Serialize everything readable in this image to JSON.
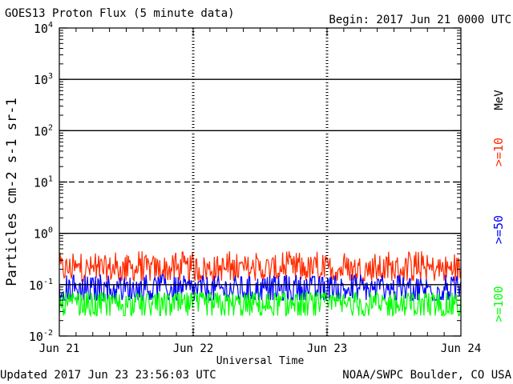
{
  "header": {
    "title": "GOES13 Proton Flux (5 minute data)",
    "begin": "Begin: 2017 Jun 21 0000 UTC"
  },
  "footer": {
    "updated": "Updated 2017 Jun 23 23:56:03 UTC",
    "credit": "NOAA/SWPC Boulder, CO USA"
  },
  "colors": {
    "ge10": "#ff2a00",
    "ge50": "#0000ff",
    "ge100": "#00ff00",
    "axis": "#000000"
  },
  "chart_data": {
    "type": "line",
    "title": "GOES13 Proton Flux (5 minute data)",
    "xlabel": "Universal Time",
    "ylabel": "Particles cm-2 s-1 sr-1",
    "yscale": "log",
    "ylim": [
      0.01,
      10000
    ],
    "xlim": [
      0,
      3
    ],
    "x_unit": "days since 2017 Jun 21 0000 UTC",
    "x_tick_labels": [
      "Jun 21",
      "Jun 22",
      "Jun 23",
      "Jun 24"
    ],
    "y_tick_labels": [
      {
        "base": "10",
        "exp": "4"
      },
      {
        "base": "10",
        "exp": "3"
      },
      {
        "base": "10",
        "exp": "2"
      },
      {
        "base": "10",
        "exp": "1"
      },
      {
        "base": "10",
        "exp": "0"
      },
      {
        "base": "10",
        "exp": "-1"
      },
      {
        "base": "10",
        "exp": "-2"
      }
    ],
    "hlines": [
      {
        "y": 1000,
        "style": "solid"
      },
      {
        "y": 100,
        "style": "solid"
      },
      {
        "y": 10,
        "style": "dashed"
      },
      {
        "y": 1,
        "style": "solid"
      },
      {
        "y": 0.1,
        "style": "solid"
      }
    ],
    "unit_label": "MeV",
    "legend_placement": "right",
    "series": [
      {
        "name": ">=10",
        "color": "#ff2a00",
        "typical": 0.2,
        "range": [
          0.12,
          0.45
        ]
      },
      {
        "name": ">=50",
        "color": "#0000ff",
        "typical": 0.08,
        "range": [
          0.05,
          0.16
        ]
      },
      {
        "name": ">=100",
        "color": "#00ff00",
        "typical": 0.04,
        "range": [
          0.025,
          0.07
        ]
      }
    ]
  }
}
